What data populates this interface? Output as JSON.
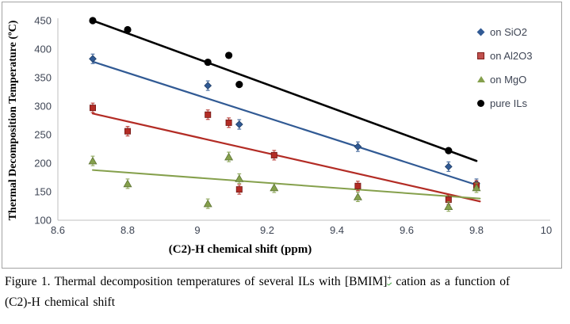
{
  "figure": {
    "caption_part1": "Figure 1. Thermal decomposition temperatures of several ILs with [BMIM]",
    "caption_sup": "+",
    "caption_part2": " cation as a function of",
    "caption_part3": "(C2)-H chemical shift"
  },
  "chart_data": {
    "type": "scatter",
    "title": "",
    "xlabel": "(C2)-H chemical shift (ppm)",
    "ylabel": "Thermal Decomposition Temperature (ºC)",
    "xlim": [
      8.6,
      10
    ],
    "ylim": [
      100,
      450
    ],
    "x_ticks": [
      8.6,
      8.8,
      9,
      9.2,
      9.4,
      9.6,
      9.8,
      10
    ],
    "y_ticks": [
      450,
      400,
      350,
      300,
      250,
      200,
      150,
      100
    ],
    "grid": false,
    "legend_position": "upper-right",
    "axis_color": "#bfbfbf",
    "series": [
      {
        "name": "on SiO2",
        "marker": "diamond",
        "color": "#315a94",
        "edge": "#1f3d66",
        "error_bars": true,
        "line_width": 2.2,
        "points": [
          [
            8.7,
            383
          ],
          [
            9.03,
            336
          ],
          [
            9.12,
            268
          ],
          [
            9.46,
            229
          ],
          [
            9.72,
            194
          ],
          [
            9.8,
            164
          ]
        ],
        "trendline": [
          [
            8.7,
            378
          ],
          [
            9.8,
            162
          ]
        ]
      },
      {
        "name": "on Al2O3",
        "marker": "square",
        "color": "#b32c25",
        "edge": "#701714",
        "error_bars": true,
        "line_width": 2.2,
        "points": [
          [
            8.7,
            297
          ],
          [
            8.8,
            256
          ],
          [
            9.03,
            285
          ],
          [
            9.09,
            271
          ],
          [
            9.12,
            154
          ],
          [
            9.22,
            214
          ],
          [
            9.46,
            160
          ],
          [
            9.72,
            136
          ],
          [
            9.8,
            161
          ]
        ],
        "trendline": [
          [
            8.7,
            287
          ],
          [
            9.81,
            133
          ]
        ]
      },
      {
        "name": "on MgO",
        "marker": "triangle",
        "color": "#85a04c",
        "edge": "#5c7233",
        "error_bars": true,
        "line_width": 2.0,
        "points": [
          [
            8.7,
            204
          ],
          [
            8.8,
            164
          ],
          [
            9.03,
            129
          ],
          [
            9.09,
            211
          ],
          [
            9.12,
            173
          ],
          [
            9.22,
            157
          ],
          [
            9.46,
            141
          ],
          [
            9.72,
            124
          ],
          [
            9.8,
            157
          ]
        ],
        "trendline": [
          [
            8.7,
            188
          ],
          [
            9.81,
            138
          ]
        ]
      },
      {
        "name": "pure ILs",
        "marker": "circle",
        "color": "#000000",
        "edge": "#000000",
        "error_bars": false,
        "line_width": 2.6,
        "points": [
          [
            8.7,
            450
          ],
          [
            8.8,
            434
          ],
          [
            9.03,
            377
          ],
          [
            9.09,
            389
          ],
          [
            9.12,
            338
          ],
          [
            9.72,
            222
          ]
        ],
        "trendline": [
          [
            8.7,
            450
          ],
          [
            9.8,
            204
          ]
        ]
      }
    ]
  }
}
